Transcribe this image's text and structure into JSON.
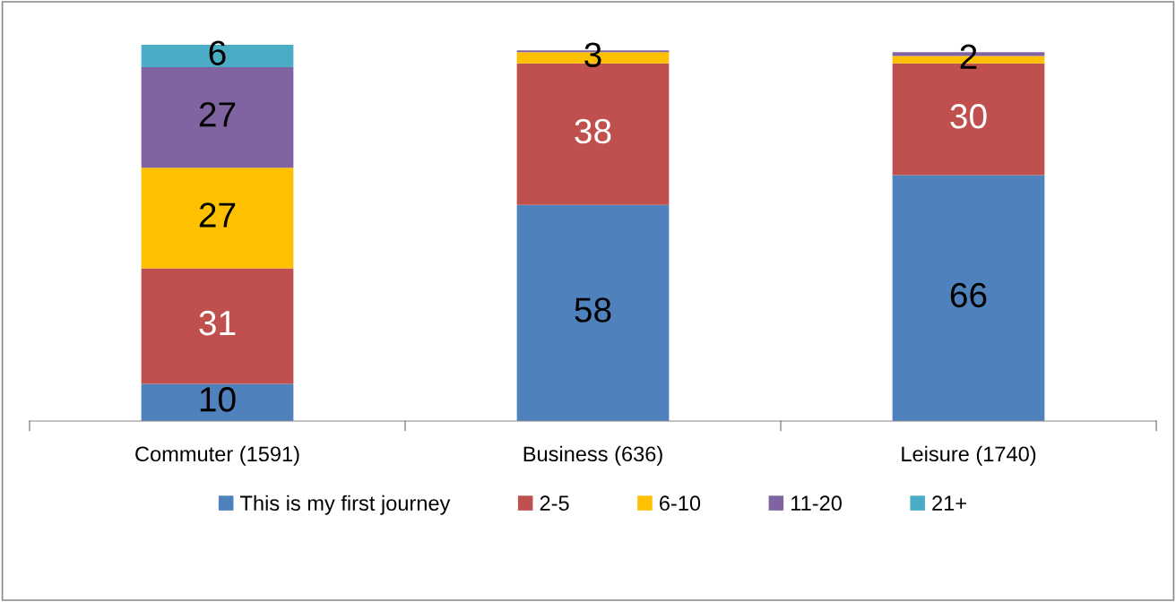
{
  "chart_data": {
    "type": "bar",
    "stacked": true,
    "categories": [
      "Commuter (1591)",
      "Business (636)",
      "Leisure (1740)"
    ],
    "series": [
      {
        "name": "This is my first journey",
        "color": "#4f81bd",
        "values": [
          10,
          58,
          66
        ],
        "value_labels": [
          "10",
          "58",
          "66"
        ]
      },
      {
        "name": "2-5",
        "color": "#c0504d",
        "values": [
          31,
          38,
          30
        ],
        "value_labels": [
          "31",
          "38",
          "30"
        ]
      },
      {
        "name": "6-10",
        "color": "#ffc000",
        "values": [
          27,
          3,
          2
        ],
        "value_labels": [
          "27",
          "3",
          "2"
        ]
      },
      {
        "name": "11-20",
        "color": "#8064a2",
        "values": [
          27,
          0.5,
          1
        ],
        "value_labels": [
          "27",
          null,
          null
        ]
      },
      {
        "name": "21+",
        "color": "#4bacc6",
        "values": [
          6,
          0,
          0
        ],
        "value_labels": [
          "6",
          null,
          null
        ]
      }
    ],
    "legend": "bottom",
    "grid": false
  }
}
